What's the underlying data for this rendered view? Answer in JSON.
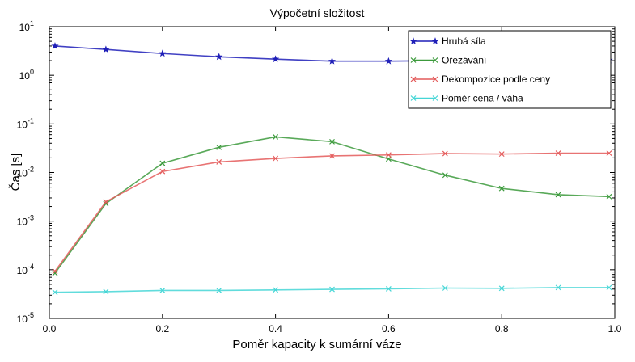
{
  "chart_data": {
    "type": "line",
    "title": "Výpočetní složitost",
    "xlabel": "Poměr kapacity k sumární váze",
    "ylabel": "Čas [s]",
    "x_ticks": [
      "0.0",
      "0.2",
      "0.4",
      "0.6",
      "0.8",
      "1.0"
    ],
    "x_tick_values": [
      0.0,
      0.2,
      0.4,
      0.6,
      0.8,
      1.0
    ],
    "y_ticks": [
      {
        "base": "10",
        "exp": "1",
        "value": 10
      },
      {
        "base": "10",
        "exp": "0",
        "value": 1
      },
      {
        "base": "10",
        "exp": "-1",
        "value": 0.1
      },
      {
        "base": "10",
        "exp": "-2",
        "value": 0.01
      },
      {
        "base": "10",
        "exp": "-3",
        "value": 0.001
      },
      {
        "base": "10",
        "exp": "-4",
        "value": 0.0001
      },
      {
        "base": "10",
        "exp": "-5",
        "value": 1e-05
      }
    ],
    "xlim": [
      0.0,
      1.0
    ],
    "ylim": [
      1e-05,
      10
    ],
    "yscale": "log",
    "grid": false,
    "legend_position": "top-right",
    "series": [
      {
        "name": "Hrubá síla",
        "color": "#1f1fb8",
        "marker": "star",
        "x": [
          0.01,
          0.1,
          0.2,
          0.3,
          0.4,
          0.5,
          0.6,
          0.7,
          0.8,
          0.9,
          0.99
        ],
        "y": [
          4.0,
          3.4,
          2.8,
          2.4,
          2.15,
          1.95,
          1.95,
          2.0,
          2.0,
          2.0,
          2.05
        ]
      },
      {
        "name": "Ořezávání",
        "color": "#3c9a3c",
        "marker": "x",
        "x": [
          0.01,
          0.1,
          0.2,
          0.3,
          0.4,
          0.5,
          0.6,
          0.7,
          0.8,
          0.9,
          0.99
        ],
        "y": [
          8.5e-05,
          0.0023,
          0.0155,
          0.033,
          0.054,
          0.043,
          0.019,
          0.0088,
          0.0047,
          0.0035,
          0.0032
        ]
      },
      {
        "name": "Dekompozice podle ceny",
        "color": "#e45a5a",
        "marker": "x",
        "x": [
          0.01,
          0.1,
          0.2,
          0.3,
          0.4,
          0.5,
          0.6,
          0.7,
          0.8,
          0.9,
          0.99
        ],
        "y": [
          9.3e-05,
          0.0025,
          0.0105,
          0.0165,
          0.0195,
          0.022,
          0.023,
          0.0245,
          0.024,
          0.025,
          0.025
        ]
      },
      {
        "name": "Poměr cena / váha",
        "color": "#45d6d6",
        "marker": "x",
        "x": [
          0.01,
          0.1,
          0.2,
          0.3,
          0.4,
          0.5,
          0.6,
          0.7,
          0.8,
          0.9,
          0.99
        ],
        "y": [
          3.45e-05,
          3.55e-05,
          3.75e-05,
          3.75e-05,
          3.85e-05,
          3.95e-05,
          4.05e-05,
          4.2e-05,
          4.15e-05,
          4.3e-05,
          4.3e-05
        ]
      }
    ]
  }
}
